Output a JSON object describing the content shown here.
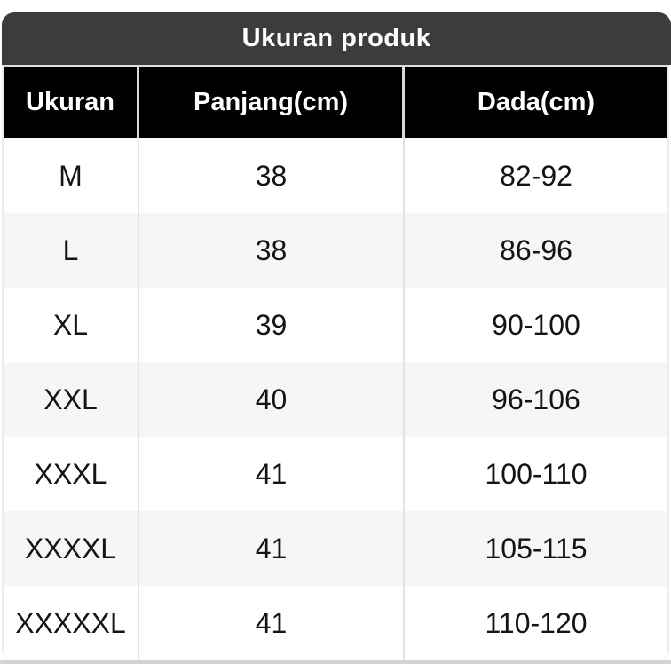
{
  "title": "Ukuran produk",
  "chart_data": {
    "type": "table",
    "title": "Ukuran produk",
    "columns": [
      "Ukuran",
      "Panjang(cm)",
      "Dada(cm)"
    ],
    "rows": [
      [
        "M",
        "38",
        "82-92"
      ],
      [
        "L",
        "38",
        "86-96"
      ],
      [
        "XL",
        "39",
        "90-100"
      ],
      [
        "XXL",
        "40",
        "96-106"
      ],
      [
        "XXXL",
        "41",
        "100-110"
      ],
      [
        "XXXXL",
        "41",
        "105-115"
      ],
      [
        "XXXXXL",
        "41",
        "110-120"
      ]
    ]
  },
  "colors": {
    "title_bar_bg": "#3c3c3c",
    "title_text": "#ffffff",
    "header_bg": "#000000",
    "header_text": "#ffffff",
    "row_bg": "#ffffff",
    "row_alt_bg": "#f6f6f8",
    "cell_text": "#141414",
    "separator": "#e3e3e3",
    "bottom_strip": "#d3d3d3"
  }
}
